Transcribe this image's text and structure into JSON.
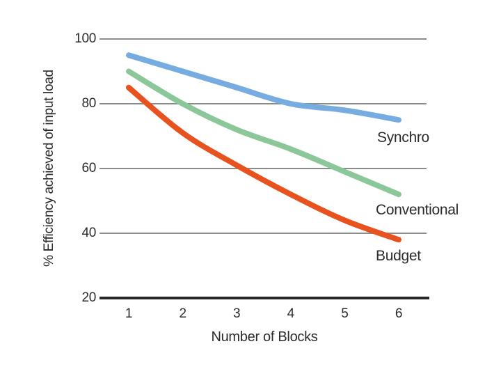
{
  "chart_data": {
    "type": "line",
    "title": "",
    "xlabel": "Number of Blocks",
    "ylabel": "% Efficiency achieved of input load",
    "x": [
      1,
      2,
      3,
      4,
      5,
      6
    ],
    "x_tick_labels": [
      "1",
      "2",
      "3",
      "4",
      "5",
      "6"
    ],
    "y_tick_labels": [
      "100",
      "80",
      "60",
      "40",
      "20"
    ],
    "y_tick_values": [
      100,
      80,
      60,
      40,
      20
    ],
    "ylim": [
      20,
      100
    ],
    "grid": "horizontal gridlines at 40, 60, 80, 100; baseline axis at 20",
    "legend_position": "inline labels at right end of each line",
    "series": [
      {
        "name": "Synchro",
        "color": "#76ACDF",
        "values": [
          95,
          90,
          85,
          80,
          78,
          75
        ]
      },
      {
        "name": "Conventional",
        "color": "#8CC799",
        "values": [
          90,
          80,
          72,
          66,
          59,
          52
        ]
      },
      {
        "name": "Budget",
        "color": "#E8521E",
        "values": [
          85,
          71,
          61,
          52,
          44,
          38
        ]
      }
    ],
    "colors": {
      "background": "#ffffff",
      "gridline": "#8C8C8C",
      "axis": "#262626",
      "text": "#2B2B2B"
    }
  }
}
